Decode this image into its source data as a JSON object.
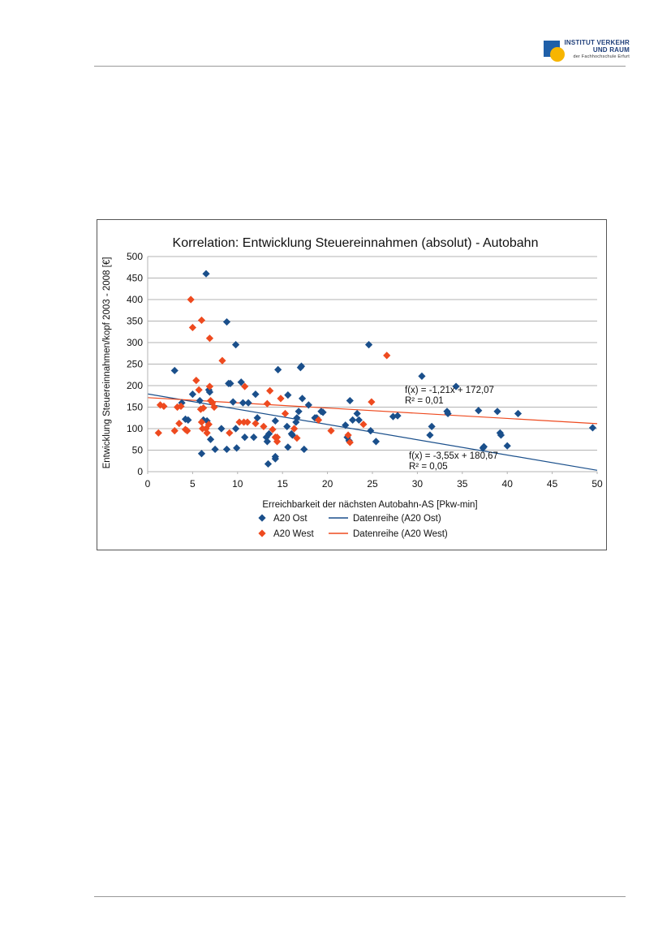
{
  "header": {
    "logo": {
      "line1": "INSTITUT VERKEHR",
      "line2": "UND RAUM",
      "line3": "der Fachhochschule Erfurt",
      "colors": {
        "square": "#1f5fa8",
        "circle": "#f7b500"
      }
    }
  },
  "chart_data": {
    "type": "scatter",
    "title": "Korrelation: Entwicklung Steuereinnahmen (absolut) - Autobahn",
    "xlabel": "Erreichbarkeit der nächsten Autobahn-AS [Pkw-min]",
    "ylabel": "Entwicklung Steuereinnahmen/kopf 2003 - 2008 [€]",
    "xlim": [
      0,
      50
    ],
    "ylim": [
      0,
      500
    ],
    "xticks": [
      0,
      5,
      10,
      15,
      20,
      25,
      30,
      35,
      40,
      45,
      50
    ],
    "yticks": [
      0,
      50,
      100,
      150,
      200,
      250,
      300,
      350,
      400,
      450,
      500
    ],
    "grid": "horizontal",
    "legend_position": "bottom",
    "series": [
      {
        "name": "A20 Ost",
        "color": "#1a4f8b",
        "marker": "diamond",
        "points": [
          [
            3,
            235
          ],
          [
            3.8,
            160
          ],
          [
            4.2,
            122
          ],
          [
            4.5,
            120
          ],
          [
            5,
            180
          ],
          [
            5.8,
            165
          ],
          [
            6,
            42
          ],
          [
            6.2,
            120
          ],
          [
            6.5,
            460
          ],
          [
            6.6,
            118
          ],
          [
            6.8,
            190
          ],
          [
            6.9,
            185
          ],
          [
            7,
            75
          ],
          [
            7.5,
            52
          ],
          [
            8.2,
            100
          ],
          [
            8.8,
            348
          ],
          [
            8.8,
            52
          ],
          [
            9,
            205
          ],
          [
            9.2,
            205
          ],
          [
            9.5,
            162
          ],
          [
            9.8,
            295
          ],
          [
            9.8,
            100
          ],
          [
            9.9,
            55
          ],
          [
            10.4,
            208
          ],
          [
            10.6,
            160
          ],
          [
            10.8,
            80
          ],
          [
            11.2,
            160
          ],
          [
            11.8,
            80
          ],
          [
            12,
            180
          ],
          [
            12.2,
            125
          ],
          [
            13.2,
            80
          ],
          [
            13.3,
            70
          ],
          [
            13.4,
            18
          ],
          [
            13.5,
            88
          ],
          [
            14.2,
            30
          ],
          [
            14.2,
            35
          ],
          [
            14.2,
            118
          ],
          [
            14.5,
            237
          ],
          [
            15.5,
            105
          ],
          [
            15.6,
            57
          ],
          [
            15.6,
            178
          ],
          [
            16,
            88
          ],
          [
            16.1,
            85
          ],
          [
            16.5,
            115
          ],
          [
            16.6,
            125
          ],
          [
            16.8,
            140
          ],
          [
            17,
            242
          ],
          [
            17.1,
            245
          ],
          [
            17.2,
            170
          ],
          [
            17.4,
            52
          ],
          [
            17.9,
            155
          ],
          [
            18.6,
            125
          ],
          [
            18.8,
            125
          ],
          [
            19.3,
            140
          ],
          [
            19.5,
            138
          ],
          [
            22,
            108
          ],
          [
            22.2,
            80
          ],
          [
            22.4,
            72
          ],
          [
            22.5,
            165
          ],
          [
            22.8,
            120
          ],
          [
            23.3,
            135
          ],
          [
            23.5,
            120
          ],
          [
            24.6,
            295
          ],
          [
            24.8,
            95
          ],
          [
            25.4,
            70
          ],
          [
            27.3,
            128
          ],
          [
            27.8,
            130
          ],
          [
            30.5,
            222
          ],
          [
            31.4,
            85
          ],
          [
            31.6,
            105
          ],
          [
            33.3,
            140
          ],
          [
            33.4,
            135
          ],
          [
            34.3,
            198
          ],
          [
            36.8,
            142
          ],
          [
            37.3,
            55
          ],
          [
            37.4,
            58
          ],
          [
            38.9,
            140
          ],
          [
            39.2,
            90
          ],
          [
            39.3,
            85
          ],
          [
            40,
            60
          ],
          [
            41.2,
            135
          ],
          [
            49.5,
            102
          ]
        ]
      },
      {
        "name": "A20 West",
        "color": "#ee4a1f",
        "marker": "diamond",
        "points": [
          [
            1.2,
            90
          ],
          [
            1.4,
            155
          ],
          [
            1.8,
            152
          ],
          [
            3,
            95
          ],
          [
            3.3,
            150
          ],
          [
            3.5,
            112
          ],
          [
            3.7,
            152
          ],
          [
            4.2,
            98
          ],
          [
            4.4,
            95
          ],
          [
            4.8,
            400
          ],
          [
            5,
            335
          ],
          [
            5.4,
            212
          ],
          [
            5.7,
            190
          ],
          [
            5.9,
            145
          ],
          [
            6,
            352
          ],
          [
            6,
            115
          ],
          [
            6.1,
            100
          ],
          [
            6.2,
            148
          ],
          [
            6.5,
            100
          ],
          [
            6.6,
            90
          ],
          [
            6.8,
            110
          ],
          [
            6.9,
            198
          ],
          [
            6.9,
            310
          ],
          [
            7,
            165
          ],
          [
            7.2,
            160
          ],
          [
            7.4,
            150
          ],
          [
            8.3,
            258
          ],
          [
            9.1,
            90
          ],
          [
            10.2,
            115
          ],
          [
            10.7,
            115
          ],
          [
            10.8,
            198
          ],
          [
            11.1,
            115
          ],
          [
            12,
            112
          ],
          [
            12.9,
            105
          ],
          [
            13.3,
            158
          ],
          [
            13.6,
            188
          ],
          [
            13.9,
            98
          ],
          [
            14.2,
            80
          ],
          [
            14.4,
            80
          ],
          [
            14.4,
            70
          ],
          [
            14.8,
            170
          ],
          [
            15.3,
            135
          ],
          [
            16.3,
            100
          ],
          [
            16.6,
            78
          ],
          [
            19,
            120
          ],
          [
            20.4,
            95
          ],
          [
            22.3,
            85
          ],
          [
            22.5,
            68
          ],
          [
            24,
            110
          ],
          [
            24.9,
            162
          ],
          [
            26.6,
            270
          ]
        ]
      },
      {
        "name": "Datenreihe (A20 Ost)",
        "type": "line",
        "color": "#1a4f8b",
        "slope": -3.55,
        "intercept": 180.67,
        "equation": "f(x) = -3,55x + 180,67",
        "r2": "R² = 0,05"
      },
      {
        "name": "Datenreihe (A20 West)",
        "type": "line",
        "color": "#ee4a1f",
        "slope": -1.21,
        "intercept": 172.07,
        "equation": "f(x) = -1,21x + 172,07",
        "r2": "R² = 0,01"
      }
    ]
  }
}
